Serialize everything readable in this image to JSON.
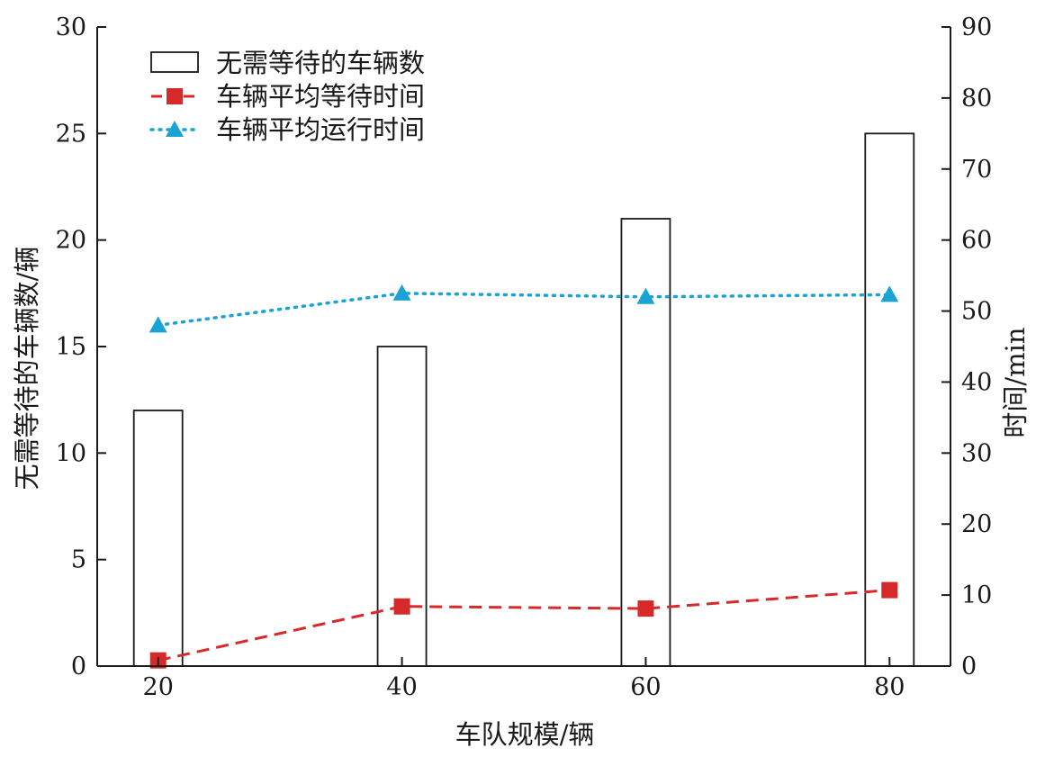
{
  "chart_data": {
    "type": "bar",
    "x": [
      20,
      40,
      60,
      80
    ],
    "xlabel": "车队规模/辆",
    "ylabel": "无需等待的车辆数/辆",
    "y2label": "时间/min",
    "xlim": [
      15,
      85
    ],
    "ylim": [
      0,
      30
    ],
    "y2lim": [
      0,
      90
    ],
    "xticks": [
      "20",
      "40",
      "60",
      "80"
    ],
    "yticks": [
      "0",
      "5",
      "10",
      "15",
      "20",
      "25",
      "30"
    ],
    "y2ticks": [
      "0",
      "10",
      "20",
      "30",
      "40",
      "50",
      "60",
      "70",
      "80",
      "90"
    ],
    "grid": false,
    "legend_position": "top-left",
    "series": [
      {
        "name": "无需等待的车辆数",
        "type": "bar",
        "axis": "left",
        "values": [
          12,
          15,
          21,
          25
        ],
        "color": "#1a1a1a"
      },
      {
        "name": "车辆平均等待时间",
        "type": "line",
        "axis": "right",
        "values": [
          0.8,
          8.4,
          8.1,
          10.7
        ],
        "color": "#d62a2a",
        "marker": "square",
        "line_style": "dashed"
      },
      {
        "name": "车辆平均运行时间",
        "type": "line",
        "axis": "right",
        "values": [
          48.0,
          52.5,
          52.0,
          52.3
        ],
        "color": "#1ba3d4",
        "marker": "triangle",
        "line_style": "dotted"
      }
    ]
  }
}
